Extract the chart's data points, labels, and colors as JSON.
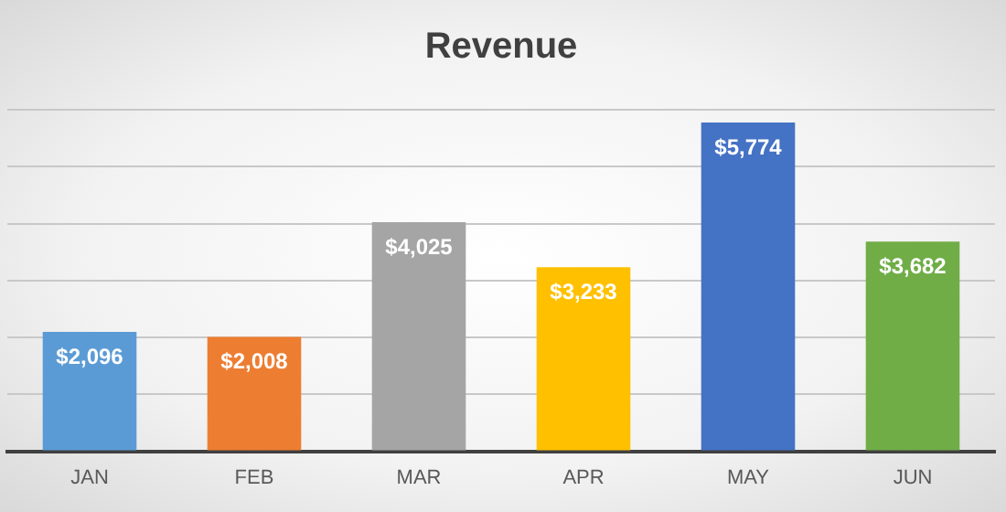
{
  "chart_data": {
    "type": "bar",
    "title": "Revenue",
    "categories": [
      "JAN",
      "FEB",
      "MAR",
      "APR",
      "MAY",
      "JUN"
    ],
    "values": [
      2096,
      2008,
      4025,
      3233,
      5774,
      3682
    ],
    "colors": [
      "#5b9bd5",
      "#ed7d31",
      "#a5a5a5",
      "#ffc000",
      "#4472c4",
      "#70ad47"
    ],
    "value_labels": [
      "$2,096",
      "$2,008",
      "$4,025",
      "$3,233",
      "$5,774",
      "$3,682"
    ],
    "ylim": [
      0,
      6000
    ],
    "yticks": [
      {
        "value": 0,
        "label": null
      },
      {
        "value": 1000,
        "label": null
      },
      {
        "value": 2000,
        "label": null
      },
      {
        "value": 3000,
        "label": null
      },
      {
        "value": 4000,
        "label": null
      },
      {
        "value": 5000,
        "label": null
      },
      {
        "value": 6000,
        "label": null
      }
    ],
    "tick_labels": "x",
    "grid": "y",
    "legend": false
  }
}
